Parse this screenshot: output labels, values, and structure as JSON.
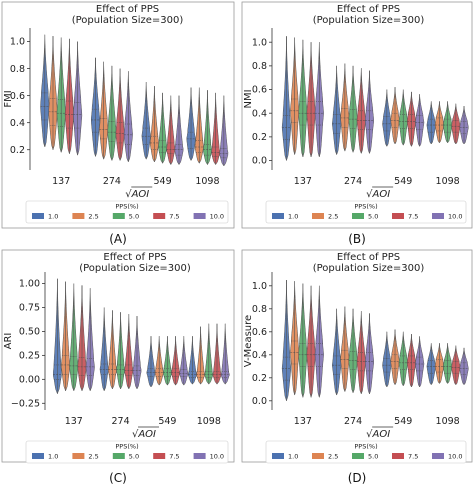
{
  "colors": {
    "series": [
      "#4c72b0",
      "#dd8452",
      "#55a868",
      "#c44e52",
      "#8172b3"
    ]
  },
  "legend": {
    "title": "PPS(%)",
    "labels": [
      "1.0",
      "2.5",
      "5.0",
      "7.5",
      "10.0"
    ]
  },
  "xaxis_label": "√AOI",
  "chart_data": [
    {
      "type": "violin",
      "title": "Effect of PPS",
      "subtitle": "(Population Size=300)",
      "ylabel": "FMI",
      "caption": "(A)",
      "ylim": [
        0.05,
        1.1
      ],
      "yticks": [
        "0.2",
        "0.4",
        "0.6",
        "0.8",
        "1.0"
      ],
      "ytick_values": [
        0.2,
        0.4,
        0.6,
        0.8,
        1.0
      ],
      "categories": [
        "137",
        "274",
        "549",
        "1098"
      ],
      "series": [
        {
          "name": "1.0",
          "median": [
            0.52,
            0.42,
            0.3,
            0.28
          ],
          "q1": [
            0.42,
            0.33,
            0.24,
            0.21
          ],
          "q3": [
            0.62,
            0.5,
            0.36,
            0.33
          ],
          "min": [
            0.22,
            0.15,
            0.13,
            0.12
          ],
          "max": [
            1.05,
            0.88,
            0.7,
            0.66
          ]
        },
        {
          "name": "2.5",
          "median": [
            0.48,
            0.35,
            0.25,
            0.22
          ],
          "q1": [
            0.38,
            0.28,
            0.2,
            0.18
          ],
          "q3": [
            0.58,
            0.43,
            0.3,
            0.27
          ],
          "min": [
            0.2,
            0.13,
            0.11,
            0.1
          ],
          "max": [
            1.04,
            0.85,
            0.67,
            0.66
          ]
        },
        {
          "name": "5.0",
          "median": [
            0.47,
            0.33,
            0.22,
            0.2
          ],
          "q1": [
            0.37,
            0.26,
            0.18,
            0.16
          ],
          "q3": [
            0.57,
            0.41,
            0.27,
            0.24
          ],
          "min": [
            0.18,
            0.12,
            0.1,
            0.09
          ],
          "max": [
            1.03,
            0.82,
            0.62,
            0.64
          ]
        },
        {
          "name": "7.5",
          "median": [
            0.46,
            0.32,
            0.2,
            0.18
          ],
          "q1": [
            0.36,
            0.25,
            0.17,
            0.15
          ],
          "q3": [
            0.56,
            0.4,
            0.25,
            0.22
          ],
          "min": [
            0.17,
            0.12,
            0.09,
            0.09
          ],
          "max": [
            1.02,
            0.8,
            0.6,
            0.62
          ]
        },
        {
          "name": "10.0",
          "median": [
            0.46,
            0.31,
            0.2,
            0.17
          ],
          "q1": [
            0.36,
            0.24,
            0.16,
            0.14
          ],
          "q3": [
            0.55,
            0.39,
            0.24,
            0.21
          ],
          "min": [
            0.16,
            0.11,
            0.09,
            0.08
          ],
          "max": [
            1.0,
            0.78,
            0.6,
            0.6
          ]
        }
      ]
    },
    {
      "type": "violin",
      "title": "Effect of PPS",
      "subtitle": "(Population Size=300)",
      "ylabel": "NMI",
      "caption": "(B)",
      "ylim": [
        -0.08,
        1.12
      ],
      "yticks": [
        "0.0",
        "0.2",
        "0.4",
        "0.6",
        "0.8",
        "1.0"
      ],
      "ytick_values": [
        0.0,
        0.2,
        0.4,
        0.6,
        0.8,
        1.0
      ],
      "categories": [
        "137",
        "274",
        "549",
        "1098"
      ],
      "series": [
        {
          "name": "1.0",
          "median": [
            0.28,
            0.31,
            0.31,
            0.3
          ],
          "q1": [
            0.18,
            0.23,
            0.25,
            0.24
          ],
          "q3": [
            0.38,
            0.39,
            0.37,
            0.35
          ],
          "min": [
            0.0,
            0.05,
            0.12,
            0.14
          ],
          "max": [
            1.05,
            0.8,
            0.6,
            0.5
          ]
        },
        {
          "name": "2.5",
          "median": [
            0.42,
            0.36,
            0.34,
            0.3
          ],
          "q1": [
            0.32,
            0.28,
            0.28,
            0.25
          ],
          "q3": [
            0.52,
            0.44,
            0.4,
            0.36
          ],
          "min": [
            0.05,
            0.08,
            0.14,
            0.15
          ],
          "max": [
            1.04,
            0.82,
            0.62,
            0.5
          ]
        },
        {
          "name": "5.0",
          "median": [
            0.4,
            0.35,
            0.33,
            0.3
          ],
          "q1": [
            0.3,
            0.27,
            0.27,
            0.24
          ],
          "q3": [
            0.5,
            0.43,
            0.39,
            0.35
          ],
          "min": [
            0.03,
            0.07,
            0.13,
            0.15
          ],
          "max": [
            1.02,
            0.8,
            0.6,
            0.5
          ]
        },
        {
          "name": "7.5",
          "median": [
            0.4,
            0.34,
            0.33,
            0.29
          ],
          "q1": [
            0.3,
            0.26,
            0.27,
            0.24
          ],
          "q3": [
            0.5,
            0.42,
            0.39,
            0.34
          ],
          "min": [
            0.03,
            0.06,
            0.12,
            0.14
          ],
          "max": [
            1.0,
            0.78,
            0.58,
            0.48
          ]
        },
        {
          "name": "10.0",
          "median": [
            0.4,
            0.34,
            0.32,
            0.28
          ],
          "q1": [
            0.3,
            0.26,
            0.26,
            0.23
          ],
          "q3": [
            0.5,
            0.42,
            0.38,
            0.33
          ],
          "min": [
            0.03,
            0.06,
            0.12,
            0.14
          ],
          "max": [
            1.0,
            0.76,
            0.56,
            0.46
          ]
        }
      ]
    },
    {
      "type": "violin",
      "title": "Effect of PPS",
      "subtitle": "(Population Size=300)",
      "ylabel": "ARI",
      "caption": "(C)",
      "ylim": [
        -0.32,
        1.12
      ],
      "yticks": [
        "−0.25",
        "0.00",
        "0.25",
        "0.50",
        "0.75",
        "1.00"
      ],
      "ytick_values": [
        -0.25,
        0.0,
        0.25,
        0.5,
        0.75,
        1.0
      ],
      "categories": [
        "137",
        "274",
        "549",
        "1098"
      ],
      "series": [
        {
          "name": "1.0",
          "median": [
            0.05,
            0.1,
            0.07,
            0.05
          ],
          "q1": [
            0.0,
            0.05,
            0.03,
            0.02
          ],
          "q3": [
            0.15,
            0.16,
            0.11,
            0.08
          ],
          "min": [
            -0.15,
            -0.12,
            -0.08,
            -0.05
          ],
          "max": [
            1.05,
            0.75,
            0.45,
            0.45
          ]
        },
        {
          "name": "2.5",
          "median": [
            0.15,
            0.1,
            0.07,
            0.05
          ],
          "q1": [
            0.05,
            0.05,
            0.03,
            0.02
          ],
          "q3": [
            0.25,
            0.16,
            0.11,
            0.08
          ],
          "min": [
            -0.12,
            -0.1,
            -0.06,
            -0.05
          ],
          "max": [
            1.02,
            0.72,
            0.45,
            0.55
          ]
        },
        {
          "name": "5.0",
          "median": [
            0.14,
            0.1,
            0.07,
            0.05
          ],
          "q1": [
            0.05,
            0.05,
            0.03,
            0.02
          ],
          "q3": [
            0.24,
            0.15,
            0.11,
            0.08
          ],
          "min": [
            -0.12,
            -0.1,
            -0.06,
            -0.05
          ],
          "max": [
            1.0,
            0.7,
            0.45,
            0.58
          ]
        },
        {
          "name": "7.5",
          "median": [
            0.13,
            0.09,
            0.07,
            0.05
          ],
          "q1": [
            0.04,
            0.04,
            0.03,
            0.02
          ],
          "q3": [
            0.23,
            0.15,
            0.11,
            0.08
          ],
          "min": [
            -0.12,
            -0.1,
            -0.06,
            -0.05
          ],
          "max": [
            0.98,
            0.68,
            0.45,
            0.58
          ]
        },
        {
          "name": "10.0",
          "median": [
            0.13,
            0.09,
            0.06,
            0.05
          ],
          "q1": [
            0.04,
            0.04,
            0.03,
            0.02
          ],
          "q3": [
            0.22,
            0.14,
            0.1,
            0.08
          ],
          "min": [
            -0.12,
            -0.1,
            -0.06,
            -0.05
          ],
          "max": [
            0.95,
            0.66,
            0.45,
            0.58
          ]
        }
      ]
    },
    {
      "type": "violin",
      "title": "Effect of PPS",
      "subtitle": "(Population Size=300)",
      "ylabel": "V-Measure",
      "caption": "(D)",
      "ylim": [
        -0.08,
        1.12
      ],
      "yticks": [
        "0.0",
        "0.2",
        "0.4",
        "0.6",
        "0.8",
        "1.0"
      ],
      "ytick_values": [
        0.0,
        0.2,
        0.4,
        0.6,
        0.8,
        1.0
      ],
      "categories": [
        "137",
        "274",
        "549",
        "1098"
      ],
      "series": [
        {
          "name": "1.0",
          "median": [
            0.28,
            0.31,
            0.31,
            0.3
          ],
          "q1": [
            0.18,
            0.23,
            0.25,
            0.24
          ],
          "q3": [
            0.38,
            0.39,
            0.37,
            0.35
          ],
          "min": [
            0.0,
            0.05,
            0.12,
            0.14
          ],
          "max": [
            1.05,
            0.8,
            0.6,
            0.5
          ]
        },
        {
          "name": "2.5",
          "median": [
            0.42,
            0.36,
            0.34,
            0.3
          ],
          "q1": [
            0.32,
            0.28,
            0.28,
            0.25
          ],
          "q3": [
            0.52,
            0.44,
            0.4,
            0.36
          ],
          "min": [
            0.05,
            0.08,
            0.14,
            0.15
          ],
          "max": [
            1.04,
            0.82,
            0.62,
            0.5
          ]
        },
        {
          "name": "5.0",
          "median": [
            0.4,
            0.35,
            0.33,
            0.3
          ],
          "q1": [
            0.3,
            0.27,
            0.27,
            0.24
          ],
          "q3": [
            0.5,
            0.43,
            0.39,
            0.35
          ],
          "min": [
            0.03,
            0.07,
            0.13,
            0.15
          ],
          "max": [
            1.02,
            0.8,
            0.6,
            0.5
          ]
        },
        {
          "name": "7.5",
          "median": [
            0.4,
            0.34,
            0.33,
            0.29
          ],
          "q1": [
            0.3,
            0.26,
            0.27,
            0.24
          ],
          "q3": [
            0.5,
            0.42,
            0.39,
            0.34
          ],
          "min": [
            0.03,
            0.06,
            0.12,
            0.14
          ],
          "max": [
            1.0,
            0.78,
            0.58,
            0.48
          ]
        },
        {
          "name": "10.0",
          "median": [
            0.4,
            0.34,
            0.32,
            0.28
          ],
          "q1": [
            0.3,
            0.26,
            0.26,
            0.23
          ],
          "q3": [
            0.5,
            0.42,
            0.38,
            0.33
          ],
          "min": [
            0.03,
            0.06,
            0.12,
            0.14
          ],
          "max": [
            1.0,
            0.76,
            0.56,
            0.46
          ]
        }
      ]
    }
  ]
}
